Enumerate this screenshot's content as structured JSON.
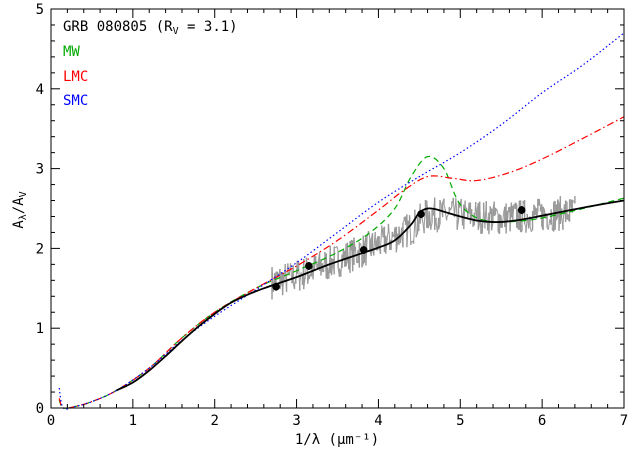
{
  "chart_data": {
    "type": "line",
    "title": "GRB 080805 (R",
    "title_sub": "V",
    "title_tail": " = 3.1)",
    "xlabel": "1/λ (μm⁻¹)",
    "ylabel": "A",
    "ylabel_sub1": "λ",
    "ylabel_mid": "/A",
    "ylabel_sub2": "V",
    "xlim": [
      0,
      7
    ],
    "ylim": [
      0,
      5
    ],
    "x_ticks": [
      "0",
      "1",
      "2",
      "3",
      "4",
      "5",
      "6",
      "7"
    ],
    "y_ticks": [
      "0",
      "1",
      "2",
      "3",
      "4",
      "5"
    ],
    "grid": false,
    "legend_position": "top-left",
    "legend": [
      {
        "label": "MW",
        "color": "#00aa00"
      },
      {
        "label": "LMC",
        "color": "#ff0000"
      },
      {
        "label": "SMC",
        "color": "#0000ff"
      }
    ],
    "series": [
      {
        "name": "MW",
        "style": "dashed",
        "color": "#00aa00",
        "x": [
          0.1,
          0.15,
          0.3,
          0.5,
          0.8,
          1.2,
          1.6,
          2.0,
          2.5,
          3.0,
          3.5,
          3.9,
          4.2,
          4.4,
          4.6,
          4.8,
          5.0,
          5.3,
          5.8,
          6.3,
          7.0
        ],
        "y": [
          0.1,
          0.0,
          0.02,
          0.08,
          0.22,
          0.5,
          0.88,
          1.2,
          1.5,
          1.72,
          1.95,
          2.2,
          2.5,
          2.9,
          3.15,
          3.0,
          2.55,
          2.35,
          2.35,
          2.45,
          2.63
        ]
      },
      {
        "name": "LMC",
        "style": "dashdot",
        "color": "#ff0000",
        "x": [
          0.1,
          0.15,
          0.3,
          0.5,
          0.8,
          1.2,
          1.6,
          2.0,
          2.5,
          3.0,
          3.5,
          4.0,
          4.3,
          4.6,
          4.9,
          5.2,
          5.6,
          6.0,
          6.5,
          7.0
        ],
        "y": [
          0.12,
          0.0,
          0.02,
          0.08,
          0.22,
          0.5,
          0.88,
          1.2,
          1.5,
          1.78,
          2.1,
          2.48,
          2.72,
          2.9,
          2.88,
          2.85,
          2.95,
          3.12,
          3.38,
          3.65
        ]
      },
      {
        "name": "SMC",
        "style": "dotted",
        "color": "#0000ff",
        "x": [
          0.1,
          0.15,
          0.3,
          0.5,
          0.8,
          1.2,
          1.6,
          2.0,
          2.5,
          3.0,
          3.5,
          4.0,
          4.5,
          5.0,
          5.5,
          6.0,
          6.5,
          7.0
        ],
        "y": [
          0.25,
          0.0,
          0.02,
          0.08,
          0.22,
          0.5,
          0.85,
          1.15,
          1.48,
          1.82,
          2.2,
          2.58,
          2.9,
          3.2,
          3.55,
          3.95,
          4.3,
          4.7
        ]
      },
      {
        "name": "",
        "style": "solid",
        "color": "#000000",
        "x": [
          0.8,
          1.0,
          1.2,
          1.4,
          1.6,
          1.8,
          2.0,
          2.2,
          2.4,
          2.6,
          2.8,
          3.0,
          3.2,
          3.4,
          3.6,
          3.8,
          4.0,
          4.2,
          4.4,
          4.5,
          4.6,
          4.7,
          4.8,
          5.0,
          5.2,
          5.4,
          5.6,
          5.8,
          6.0,
          6.3,
          6.6,
          7.0
        ],
        "y": [
          0.22,
          0.32,
          0.47,
          0.65,
          0.84,
          1.02,
          1.18,
          1.32,
          1.42,
          1.5,
          1.57,
          1.64,
          1.72,
          1.8,
          1.87,
          1.94,
          2.01,
          2.1,
          2.3,
          2.45,
          2.5,
          2.49,
          2.46,
          2.4,
          2.35,
          2.33,
          2.34,
          2.37,
          2.41,
          2.47,
          2.53,
          2.6
        ]
      }
    ],
    "data_points": {
      "x": [
        2.75,
        3.15,
        3.82,
        4.52,
        5.75
      ],
      "y": [
        1.52,
        1.78,
        1.98,
        2.43,
        2.48
      ],
      "yerr": [
        0.05,
        0.05,
        0.05,
        0.05,
        0.05
      ]
    },
    "spectrum": {
      "color": "#999999",
      "x_range": [
        2.7,
        6.4
      ],
      "baseline_x": [
        2.7,
        3.0,
        3.5,
        4.0,
        4.4,
        4.6,
        5.0,
        5.5,
        6.0,
        6.4
      ],
      "baseline_y": [
        1.58,
        1.65,
        1.85,
        2.05,
        2.25,
        2.42,
        2.42,
        2.38,
        2.42,
        2.45
      ],
      "scatter": 0.22
    }
  }
}
